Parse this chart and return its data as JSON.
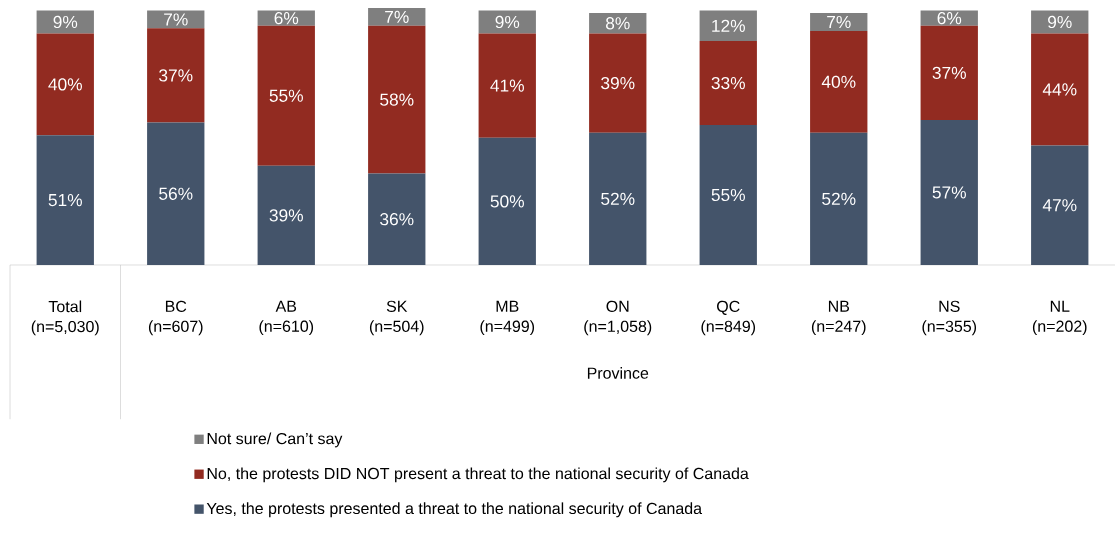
{
  "chart_data": {
    "type": "bar",
    "stacked": true,
    "categories": [
      "Total (n=5,030)",
      "BC (n=607)",
      "AB (n=610)",
      "SK (n=504)",
      "MB (n=499)",
      "ON (n=1,058)",
      "QC (n=849)",
      "NB (n=247)",
      "NS (n=355)",
      "NL (n=202)"
    ],
    "series": [
      {
        "name": "Yes, the protests presented a threat to the national security of Canada",
        "color": "#44546a",
        "values": [
          51,
          56,
          39,
          36,
          50,
          52,
          55,
          52,
          57,
          47
        ],
        "value_labels": [
          "51%",
          "56%",
          "39%",
          "36%",
          "50%",
          "52%",
          "55%",
          "52%",
          "57%",
          "47%"
        ]
      },
      {
        "name": "No, the protests DID NOT present a threat to the national security of Canada",
        "color": "#922b21",
        "values": [
          40,
          37,
          55,
          58,
          41,
          39,
          33,
          40,
          37,
          44
        ],
        "value_labels": [
          "40%",
          "37%",
          "55%",
          "58%",
          "41%",
          "39%",
          "33%",
          "40%",
          "37%",
          "44%"
        ]
      },
      {
        "name": "Not sure/ Can’t say",
        "color": "#7f7f7f",
        "values": [
          9,
          7,
          6,
          7,
          9,
          8,
          12,
          7,
          6,
          9
        ],
        "value_labels": [
          "9%",
          "7%",
          "6%",
          "7%",
          "9%",
          "8%",
          "12%",
          "7%",
          "6%",
          "9%"
        ]
      }
    ],
    "ylim": [
      0,
      101
    ],
    "annotations": [
      "Province"
    ],
    "legend": "bottom"
  }
}
